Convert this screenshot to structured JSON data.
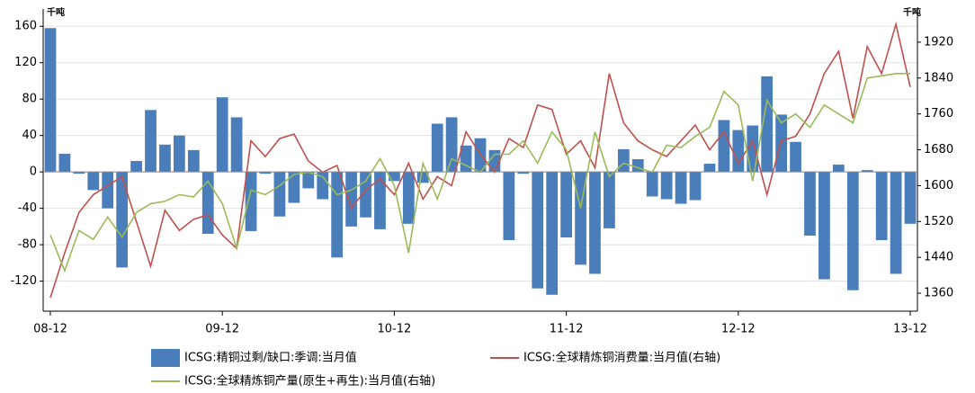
{
  "chart_data": {
    "type": "bar",
    "y_unit": "千吨",
    "y2_unit": "千吨",
    "categories": [
      "08-12",
      null,
      null,
      null,
      null,
      null,
      null,
      null,
      null,
      null,
      null,
      null,
      "09-12",
      null,
      null,
      null,
      null,
      null,
      null,
      null,
      null,
      null,
      null,
      null,
      "10-12",
      null,
      null,
      null,
      null,
      null,
      null,
      null,
      null,
      null,
      null,
      null,
      "11-12",
      null,
      null,
      null,
      null,
      null,
      null,
      null,
      null,
      null,
      null,
      null,
      "12-12",
      null,
      null,
      null,
      null,
      null,
      null,
      null,
      null,
      null,
      null,
      null,
      "13-12"
    ],
    "series": [
      {
        "name": "ICSG:精铜过剩/缺口:季调:当月值",
        "type": "bar",
        "color": "#4a7ebb",
        "values": [
          158,
          20,
          -2,
          -20,
          -40,
          -105,
          12,
          68,
          30,
          40,
          24,
          -68,
          82,
          60,
          -65,
          -2,
          -49,
          -34,
          -18,
          -30,
          -94,
          -60,
          -50,
          -63,
          -10,
          -57,
          -12,
          53,
          60,
          29,
          37,
          24,
          -75,
          -2,
          -128,
          -135,
          -72,
          -102,
          -112,
          -62,
          25,
          14,
          -27,
          -30,
          -35,
          -31,
          9,
          57,
          46,
          51,
          105,
          63,
          33,
          -70,
          -118,
          8,
          -130,
          2,
          -75,
          -112,
          -57
        ]
      },
      {
        "name": "ICSG:全球精炼铜消费量:当月值(右轴)",
        "type": "line",
        "axis": "y2",
        "color": "#c0504d",
        "values": [
          1350,
          1450,
          1540,
          1580,
          1600,
          1620,
          1520,
          1420,
          1545,
          1500,
          1525,
          1535,
          1490,
          1460,
          1700,
          1665,
          1705,
          1715,
          1655,
          1630,
          1645,
          1550,
          1590,
          1615,
          1580,
          1650,
          1570,
          1620,
          1600,
          1720,
          1670,
          1630,
          1705,
          1685,
          1780,
          1770,
          1670,
          1700,
          1640,
          1850,
          1740,
          1700,
          1680,
          1665,
          1700,
          1735,
          1680,
          1720,
          1650,
          1700,
          1580,
          1700,
          1710,
          1760,
          1850,
          1900,
          1750,
          1910,
          1850,
          1960,
          1820
        ]
      },
      {
        "name": "ICSG:全球精炼铜产量(原生+再生):当月值(右轴)",
        "type": "line",
        "axis": "y2",
        "color": "#9bbb59",
        "values": [
          1490,
          1410,
          1500,
          1480,
          1530,
          1485,
          1540,
          1560,
          1565,
          1580,
          1575,
          1610,
          1560,
          1460,
          1590,
          1580,
          1600,
          1625,
          1630,
          1620,
          1580,
          1590,
          1610,
          1660,
          1600,
          1450,
          1650,
          1570,
          1660,
          1645,
          1630,
          1670,
          1670,
          1700,
          1650,
          1720,
          1680,
          1550,
          1720,
          1620,
          1650,
          1640,
          1630,
          1690,
          1685,
          1710,
          1730,
          1810,
          1780,
          1610,
          1790,
          1740,
          1760,
          1730,
          1780,
          1760,
          1740,
          1840,
          1845,
          1850,
          1850
        ]
      }
    ],
    "ylim": [
      -153,
      179
    ],
    "yticks": [
      -120,
      -80,
      -40,
      0,
      40,
      80,
      120,
      160
    ],
    "y2lim": [
      1320,
      1994
    ],
    "y2ticks": [
      1360,
      1440,
      1520,
      1600,
      1680,
      1760,
      1840,
      1920
    ],
    "grid": true
  }
}
